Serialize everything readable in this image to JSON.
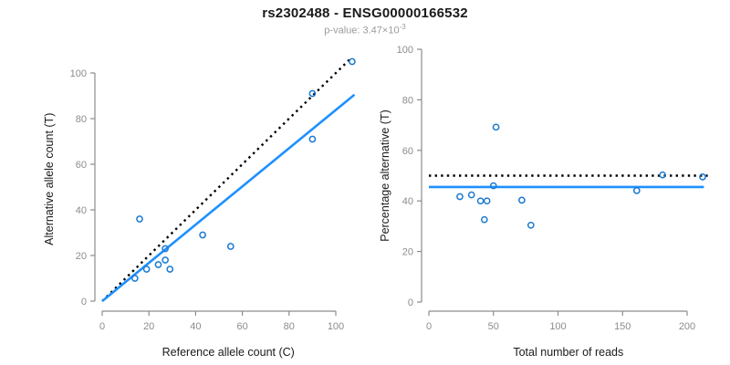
{
  "header": {
    "title": "rs2302488 - ENSG00000166532",
    "subtitle_prefix": "p-value: 3.47×10",
    "subtitle_exponent": "-3"
  },
  "colors": {
    "point": "#1b7ad1",
    "fit_line": "#1e90ff",
    "reference_line": "#000000",
    "axis": "#8c8c8c",
    "tick_label": "#8c8c8c",
    "axis_title": "#1a1a1a",
    "subtitle": "#9b9b9b"
  },
  "chart_data": [
    {
      "type": "scatter",
      "panel": "allele-counts",
      "xlabel": "Reference allele count (C)",
      "ylabel": "Alternative allele count (T)",
      "xlim": [
        0,
        108
      ],
      "ylim": [
        0,
        107
      ],
      "xticks": [
        0,
        20,
        40,
        60,
        80,
        100
      ],
      "yticks": [
        0,
        20,
        40,
        60,
        80,
        100
      ],
      "grid": false,
      "legend": "none",
      "points": [
        [
          14,
          10
        ],
        [
          16,
          36
        ],
        [
          19,
          14
        ],
        [
          24,
          16
        ],
        [
          27,
          18
        ],
        [
          27,
          23
        ],
        [
          29,
          14
        ],
        [
          43,
          29
        ],
        [
          55,
          24
        ],
        [
          90,
          91
        ],
        [
          90,
          71
        ],
        [
          107,
          105
        ]
      ],
      "lines": [
        {
          "name": "identity-line",
          "style": "dotted",
          "color": "#000000",
          "from": [
            0,
            0
          ],
          "to": [
            106,
            106
          ]
        },
        {
          "name": "fit-line",
          "style": "solid",
          "color": "#1e90ff",
          "from": [
            0,
            0
          ],
          "to": [
            108,
            90.5
          ]
        }
      ]
    },
    {
      "type": "scatter",
      "panel": "percentage-vs-reads",
      "xlabel": "Total number of reads",
      "ylabel": "Percentage alternative (T)",
      "xlim": [
        0,
        216
      ],
      "ylim": [
        0,
        100
      ],
      "xticks": [
        0,
        50,
        100,
        150,
        200
      ],
      "yticks": [
        0,
        20,
        40,
        60,
        80,
        100
      ],
      "grid": false,
      "legend": "none",
      "points": [
        [
          24,
          41.7
        ],
        [
          52,
          69.2
        ],
        [
          33,
          42.4
        ],
        [
          40,
          40
        ],
        [
          45,
          40
        ],
        [
          50,
          46
        ],
        [
          43,
          32.6
        ],
        [
          72,
          40.3
        ],
        [
          79,
          30.4
        ],
        [
          181,
          50.3
        ],
        [
          161,
          44.1
        ],
        [
          212,
          49.5
        ]
      ],
      "lines": [
        {
          "name": "expected-50pct-line",
          "style": "dotted",
          "color": "#000000",
          "from": [
            0,
            50
          ],
          "to": [
            216,
            50
          ]
        },
        {
          "name": "mean-percentage-line",
          "style": "solid",
          "color": "#1e90ff",
          "from": [
            0,
            45.5
          ],
          "to": [
            213,
            45.5
          ]
        }
      ]
    }
  ]
}
